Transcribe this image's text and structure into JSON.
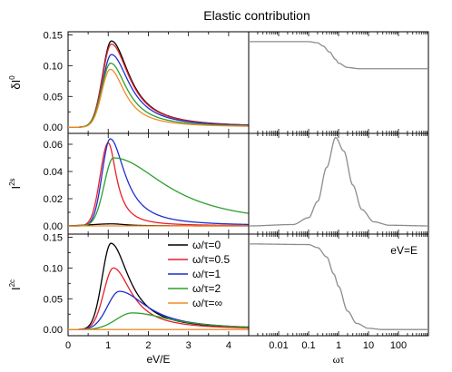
{
  "title": "Elastic contribution",
  "chart_data": [
    {
      "type": "line",
      "id": "dI0",
      "ylabel": "δI",
      "ylabel_sup": "0",
      "xlabel": "",
      "xlim": [
        0,
        4.5
      ],
      "ylim": [
        -0.01,
        0.155
      ],
      "yticks": [
        0.0,
        0.05,
        0.1,
        0.15
      ],
      "ytick_labels": [
        "0.00",
        "0.05",
        "0.10",
        "0.15"
      ],
      "series": [
        {
          "name": "ω/τ=0",
          "color": "#000000",
          "peak": 0.14,
          "x0": 1.08,
          "w": 0.22,
          "tail": 0.55
        },
        {
          "name": "ω/τ=0.5",
          "color": "#e8202a",
          "peak": 0.135,
          "x0": 1.08,
          "w": 0.22,
          "tail": 0.55
        },
        {
          "name": "ω/τ=1",
          "color": "#1d2fd0",
          "peak": 0.118,
          "x0": 1.08,
          "w": 0.22,
          "tail": 0.55
        },
        {
          "name": "ω/τ=2",
          "color": "#2ca02c",
          "peak": 0.104,
          "x0": 1.06,
          "w": 0.22,
          "tail": 0.5
        },
        {
          "name": "ω/τ=∞",
          "color": "#f08c28",
          "peak": 0.094,
          "x0": 1.05,
          "w": 0.21,
          "tail": 0.45
        }
      ]
    },
    {
      "type": "line",
      "id": "dI0-vs-omega",
      "xscale": "log",
      "xlim": [
        0.001,
        1000
      ],
      "ylim": [
        -0.01,
        0.155
      ],
      "series": [
        {
          "color": "#8c8c8c",
          "x": [
            0.001,
            0.1,
            0.2,
            0.3,
            0.5,
            0.8,
            1,
            2,
            5,
            1000
          ],
          "y": [
            0.139,
            0.139,
            0.137,
            0.132,
            0.122,
            0.11,
            0.104,
            0.097,
            0.095,
            0.095
          ]
        }
      ]
    },
    {
      "type": "line",
      "id": "I2s",
      "ylabel": "I",
      "ylabel_sup": "2s",
      "xlim": [
        0,
        4.5
      ],
      "ylim": [
        -0.006,
        0.068
      ],
      "yticks": [
        0.0,
        0.02,
        0.04,
        0.06
      ],
      "ytick_labels": [
        "0.00",
        "0.02",
        "0.04",
        "0.06"
      ],
      "series": [
        {
          "name": "ω/τ=0",
          "color": "#000000",
          "peak": 0.0015,
          "x0": 1.1,
          "w": 0.5,
          "tail": 0.4
        },
        {
          "name": "ω/τ=0.5",
          "color": "#e8202a",
          "peak": 0.061,
          "x0": 1.0,
          "w": 0.2,
          "tail": 0.25
        },
        {
          "name": "ω/τ=1",
          "color": "#1d2fd0",
          "peak": 0.064,
          "x0": 1.05,
          "w": 0.2,
          "tail": 0.45
        },
        {
          "name": "ω/τ=2",
          "color": "#2ca02c",
          "peak": 0.05,
          "x0": 1.13,
          "w": 0.23,
          "tail": 1.6
        },
        {
          "name": "ω/τ=∞",
          "color": "#f08c28",
          "peak": 0.0,
          "x0": 1.0,
          "w": 0.2,
          "tail": 0.5
        }
      ]
    },
    {
      "type": "line",
      "id": "I2s-vs-omega",
      "xscale": "log",
      "xlim": [
        0.001,
        1000
      ],
      "ylim": [
        -0.006,
        0.068
      ],
      "series": [
        {
          "color": "#8c8c8c",
          "x": [
            0.001,
            0.03,
            0.1,
            0.2,
            0.4,
            0.8,
            1.5,
            3,
            6,
            15,
            50,
            1000
          ],
          "y": [
            0.0,
            0.001,
            0.006,
            0.018,
            0.043,
            0.065,
            0.055,
            0.03,
            0.012,
            0.003,
            0.0005,
            0.0
          ]
        }
      ]
    },
    {
      "type": "line",
      "id": "I2c",
      "ylabel": "I",
      "ylabel_sup": "2c",
      "xlabel": "eV/E",
      "xlim": [
        0,
        4.5
      ],
      "ylim": [
        -0.01,
        0.155
      ],
      "yticks": [
        0.0,
        0.05,
        0.1,
        0.15
      ],
      "ytick_labels": [
        "0.00",
        "0.05",
        "0.10",
        "0.15"
      ],
      "xticks": [
        0,
        1,
        2,
        3,
        4
      ],
      "xtick_labels": [
        "0",
        "1",
        "2",
        "3",
        "4"
      ],
      "legend": "top-right",
      "series": [
        {
          "name": "ω/τ=0",
          "color": "#000000",
          "peak": 0.14,
          "x0": 1.07,
          "w": 0.22,
          "tail": 0.55
        },
        {
          "name": "ω/τ=0.5",
          "color": "#e8202a",
          "peak": 0.1,
          "x0": 1.13,
          "w": 0.24,
          "tail": 0.55
        },
        {
          "name": "ω/τ=1",
          "color": "#1d2fd0",
          "peak": 0.062,
          "x0": 1.28,
          "w": 0.3,
          "tail": 0.85
        },
        {
          "name": "ω/τ=2",
          "color": "#2ca02c",
          "peak": 0.027,
          "x0": 1.6,
          "w": 0.4,
          "tail": 1.2
        },
        {
          "name": "ω/τ=∞",
          "color": "#f08c28",
          "peak": 0.0,
          "x0": 1.0,
          "w": 0.2,
          "tail": 0.5
        }
      ]
    },
    {
      "type": "line",
      "id": "I2c-vs-omega",
      "xscale": "log",
      "xlabel": "ωτ",
      "xlim": [
        0.001,
        1000
      ],
      "ylim": [
        -0.01,
        0.155
      ],
      "xticks": [
        0.01,
        0.1,
        1,
        10,
        100
      ],
      "xtick_labels": [
        "0.01",
        "0.1",
        "1",
        "10",
        "100"
      ],
      "annotation": "eV=E",
      "series": [
        {
          "color": "#8c8c8c",
          "x": [
            0.001,
            0.1,
            0.2,
            0.4,
            0.7,
            1,
            2,
            4,
            10,
            30,
            1000
          ],
          "y": [
            0.139,
            0.138,
            0.133,
            0.118,
            0.09,
            0.07,
            0.03,
            0.01,
            0.002,
            0.0,
            0.0
          ]
        }
      ]
    }
  ]
}
